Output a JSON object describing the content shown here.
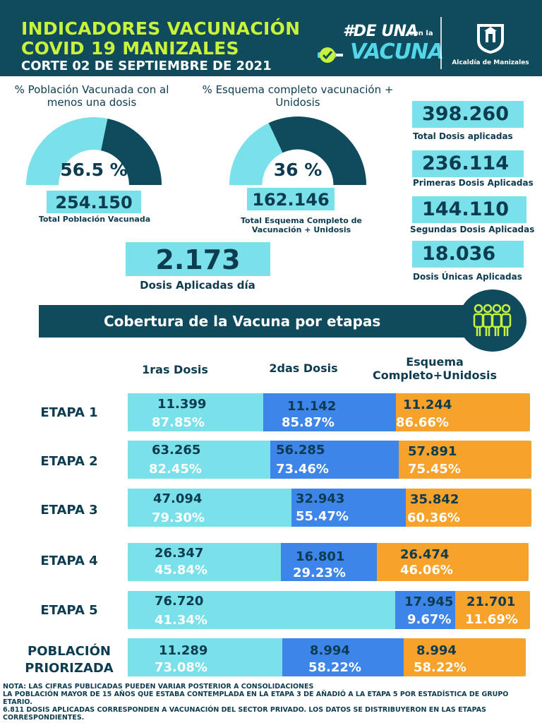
{
  "header": {
    "title_line1": "INDICADORES VACUNACIÓN",
    "title_line2": "COVID 19 MANIZALES",
    "cutoff": "CORTE 02 DE SEPTIEMBRE DE 2021",
    "campaign_line1": "#DE UNA",
    "campaign_small": "con la",
    "campaign_line2": "VACUNA",
    "mayor_office": "Alcaldía de Manizales"
  },
  "gauges": [
    {
      "title": "% Población Vacunada con al menos una dosis",
      "percent_label": "56.5 %",
      "fraction": 0.565,
      "value": "254.150",
      "caption": "Total Población Vacunada"
    },
    {
      "title": "% Esquema completo vacunación + Unidosis",
      "percent_label": "36 %",
      "fraction": 0.36,
      "value": "162.146",
      "caption": "Total Esquema Completo de Vacunación + Unidosis"
    }
  ],
  "daily": {
    "value": "2.173",
    "caption": "Dosis Aplicadas día"
  },
  "totals": [
    {
      "value": "398.260",
      "label": "Total Dosis aplicadas"
    },
    {
      "value": "236.114",
      "label": "Primeras Dosis Aplicadas"
    },
    {
      "value": "144.110",
      "label": "Segundas Dosis Aplicadas"
    },
    {
      "value": "18.036",
      "label": "Dosis Únicas Aplicadas"
    }
  ],
  "coverage": {
    "title": "Cobertura de la Vacuna por etapas",
    "columns": [
      "1ras Dosis",
      "2das Dosis",
      "Esquema Completo+Unidosis"
    ],
    "rows": [
      {
        "label": "ETAPA 1",
        "first": {
          "value": "11.399",
          "percent": "87.85%"
        },
        "second": {
          "value": "11.142",
          "percent": "85.87%"
        },
        "complete": {
          "value": "11.244",
          "percent": "86.66%"
        }
      },
      {
        "label": "ETAPA 2",
        "first": {
          "value": "63.265",
          "percent": "82.45%"
        },
        "second": {
          "value": "56.285",
          "percent": "73.46%"
        },
        "complete": {
          "value": "57.891",
          "percent": "75.45%"
        }
      },
      {
        "label": "ETAPA 3",
        "first": {
          "value": "47.094",
          "percent": "79.30%"
        },
        "second": {
          "value": "32.943",
          "percent": "55.47%"
        },
        "complete": {
          "value": "35.842",
          "percent": "60.36%"
        }
      },
      {
        "label": "ETAPA 4",
        "first": {
          "value": "26.347",
          "percent": "45.84%"
        },
        "second": {
          "value": "16.801",
          "percent": "29.23%"
        },
        "complete": {
          "value": "26.474",
          "percent": "46.06%"
        }
      },
      {
        "label": "ETAPA 5",
        "first": {
          "value": "76.720",
          "percent": "41.34%"
        },
        "second": {
          "value": "17.945",
          "percent": "9.67%"
        },
        "complete": {
          "value": "21.701",
          "percent": "11.69%"
        }
      },
      {
        "label": "POBLACIÓN PRIORIZADA",
        "first": {
          "value": "11.289",
          "percent": "73.08%"
        },
        "second": {
          "value": "8.994",
          "percent": "58.22%"
        },
        "complete": {
          "value": "8.994",
          "percent": "58.22%"
        }
      }
    ]
  },
  "notes": [
    "NOTA: LAS CIFRAS PUBLICADAS PUEDEN VARIAR POSTERIOR A CONSOLIDACIONES",
    "LA POBLACIÓN MAYOR  DE 15 AÑOS  QUE ESTABA CONTEMPLADA EN LA ETAPA 3 DE AÑADIÓ A LA ETAPA 5 POR ESTADÍSTICA DE GRUPO ETARIO.",
    "6.811 DOSIS APLICADAS CORRESPONDEN A VACUNACIÓN  DEL SECTOR PRIVADO. LOS DATOS SE DISTRIBUYERON EN LAS ETAPAS CORRESPONDIENTES."
  ],
  "colors": {
    "navy": "#0f4b5c",
    "lime": "#c9f23c",
    "cyan": "#7ae0ea",
    "blue": "#3d85e8",
    "orange": "#f7a22a",
    "text": "#0d3b4f"
  }
}
